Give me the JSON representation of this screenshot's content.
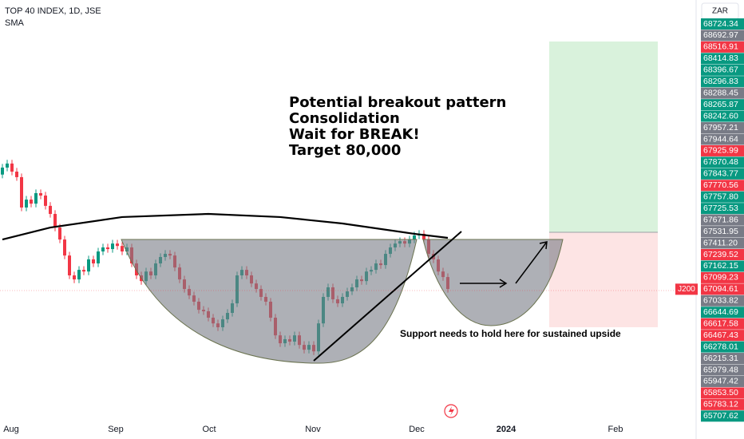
{
  "chart_data": {
    "type": "candlestick",
    "title": "TOP 40 INDEX, 1D, JSE",
    "indicator": "SMA",
    "currency": "ZAR",
    "symbol_label": "J200",
    "annotation_lines": [
      "Potential breakout pattern",
      "Consolidation",
      "Wait for BREAK!",
      "Target 80,000"
    ],
    "support_note": "Support needs to hold here for sustained upside",
    "x_labels": [
      "Aug",
      "Sep",
      "Oct",
      "Nov",
      "Dec",
      "2024",
      "Feb"
    ],
    "ylim": [
      59980,
      82890
    ],
    "up_color": "#089981",
    "down_color": "#f23645",
    "last_price": 67094.61,
    "open": [
      73400,
      73780,
      74000,
      73560,
      73260,
      71610,
      72040,
      71820,
      72390,
      72260,
      71700,
      71260,
      70520,
      69870,
      69000,
      67920,
      67700,
      68220,
      68130,
      68790,
      68570,
      69220,
      69440,
      69350,
      69650,
      69520,
      69220,
      69440,
      68570,
      67920,
      67610,
      68130,
      67920,
      68570,
      68920,
      69090,
      69000,
      68350,
      67700,
      67180,
      66830,
      66490,
      66050,
      65970,
      65620,
      65310,
      65100,
      65530,
      65880,
      66400,
      67920,
      68220,
      67920,
      67480,
      67180,
      66750,
      66490,
      65620,
      64660,
      64230,
      64450,
      64320,
      64660,
      64140,
      63880,
      64140,
      63790,
      65310,
      66750,
      67270,
      66620,
      66400,
      66750,
      67050,
      67270,
      67700,
      67610,
      68130,
      68220,
      68570,
      68480,
      69090,
      69440,
      69650,
      69780,
      69650,
      69870,
      70090,
      70180,
      69870,
      69090,
      68790,
      68130,
      67830
    ],
    "high": [
      73980,
      74200,
      74200,
      73760,
      73460,
      72240,
      72240,
      72590,
      72590,
      72460,
      71900,
      71460,
      70720,
      70070,
      69200,
      68120,
      68420,
      68420,
      68990,
      68990,
      69420,
      69640,
      69640,
      69850,
      69850,
      69720,
      69640,
      69640,
      68770,
      68120,
      68330,
      68330,
      68770,
      69120,
      69290,
      69290,
      69200,
      68550,
      67900,
      67380,
      67030,
      66690,
      66250,
      66170,
      65820,
      65510,
      65730,
      66080,
      66600,
      68120,
      68420,
      68420,
      68120,
      67680,
      67380,
      66950,
      66690,
      65820,
      64860,
      64650,
      64650,
      64860,
      64860,
      64340,
      64340,
      64340,
      65510,
      66950,
      67470,
      67470,
      66820,
      66950,
      67250,
      67470,
      67900,
      67900,
      68330,
      68420,
      68770,
      68770,
      69290,
      69640,
      69850,
      69980,
      69980,
      70070,
      70290,
      70380,
      70380,
      70070,
      69290,
      68990,
      68330,
      68030
    ],
    "low": [
      73200,
      73580,
      73360,
      73060,
      71410,
      71410,
      71620,
      71620,
      72060,
      71500,
      71060,
      70320,
      69670,
      68800,
      67720,
      67500,
      67500,
      67930,
      67930,
      68370,
      68370,
      69020,
      69150,
      69150,
      69320,
      69020,
      69020,
      68370,
      67720,
      67410,
      67410,
      67720,
      67720,
      68370,
      68720,
      68800,
      68150,
      67500,
      66980,
      66630,
      66290,
      65850,
      65770,
      65420,
      65110,
      64900,
      64900,
      65330,
      65680,
      66200,
      67720,
      67720,
      67280,
      66980,
      66550,
      66290,
      65420,
      64460,
      64030,
      64030,
      64120,
      64120,
      63940,
      63680,
      63680,
      63590,
      63590,
      65110,
      66550,
      66420,
      66200,
      66200,
      66550,
      66850,
      67070,
      67410,
      67410,
      67930,
      68020,
      68280,
      68280,
      68890,
      69240,
      69450,
      69450,
      69450,
      69670,
      69890,
      69670,
      68890,
      68590,
      67930,
      67630,
      66980
    ],
    "close": [
      73780,
      74000,
      73560,
      73260,
      71610,
      72040,
      71820,
      72390,
      72260,
      71700,
      71260,
      70520,
      69870,
      69000,
      67920,
      67700,
      68220,
      68130,
      68790,
      68570,
      69220,
      69440,
      69350,
      69650,
      69520,
      69220,
      69440,
      68570,
      67920,
      67610,
      68130,
      67920,
      68570,
      68920,
      69090,
      69000,
      68350,
      67700,
      67180,
      66830,
      66490,
      66050,
      65970,
      65620,
      65310,
      65100,
      65530,
      65880,
      66400,
      67920,
      68220,
      67920,
      67480,
      67180,
      66750,
      66490,
      65620,
      64660,
      64230,
      64450,
      64320,
      64660,
      64140,
      63880,
      64140,
      63790,
      65310,
      66750,
      67270,
      66620,
      66400,
      66750,
      67050,
      67270,
      67700,
      67610,
      68130,
      68220,
      68570,
      68480,
      69090,
      69440,
      69650,
      69780,
      69650,
      69870,
      70090,
      70180,
      69870,
      69090,
      68790,
      68130,
      67830,
      67180
    ],
    "sma": {
      "color": "#000000",
      "index": [
        0,
        10,
        25,
        43,
        58,
        71,
        86,
        93
      ],
      "values": [
        69870,
        70520,
        71090,
        71260,
        71090,
        70740,
        70180,
        69960
      ]
    },
    "price_labels": [
      {
        "value": 68724.34,
        "color": "#089981"
      },
      {
        "value": 68692.97,
        "color": "#787b86"
      },
      {
        "value": 68516.91,
        "color": "#f23645"
      },
      {
        "value": 68414.83,
        "color": "#089981"
      },
      {
        "value": 68396.67,
        "color": "#089981"
      },
      {
        "value": 68296.83,
        "color": "#089981"
      },
      {
        "value": 68288.45,
        "color": "#787b86"
      },
      {
        "value": 68265.87,
        "color": "#089981"
      },
      {
        "value": 68242.6,
        "label": "68242.60",
        "color": "#089981"
      },
      {
        "value": 67957.21,
        "color": "#787b86"
      },
      {
        "value": 67944.64,
        "color": "#787b86"
      },
      {
        "value": 67925.99,
        "color": "#f23645"
      },
      {
        "value": 67870.48,
        "color": "#089981"
      },
      {
        "value": 67843.77,
        "color": "#089981"
      },
      {
        "value": 67770.56,
        "color": "#f23645"
      },
      {
        "value": 67757.8,
        "label": "67757.80",
        "color": "#089981"
      },
      {
        "value": 67725.53,
        "color": "#089981"
      },
      {
        "value": 67671.86,
        "color": "#787b86"
      },
      {
        "value": 67531.95,
        "color": "#787b86"
      },
      {
        "value": 67411.2,
        "label": "67411.20",
        "color": "#787b86"
      },
      {
        "value": 67239.52,
        "color": "#f23645"
      },
      {
        "value": 67162.15,
        "color": "#089981"
      },
      {
        "value": 67099.23,
        "color": "#f23645"
      },
      {
        "value": 67094.61,
        "color": "#f23645"
      },
      {
        "value": 67033.82,
        "color": "#787b86"
      },
      {
        "value": 66644.69,
        "color": "#089981"
      },
      {
        "value": 66617.58,
        "color": "#f23645"
      },
      {
        "value": 66467.43,
        "color": "#f23645"
      },
      {
        "value": 66278.01,
        "color": "#089981"
      },
      {
        "value": 66215.31,
        "color": "#787b86"
      },
      {
        "value": 65979.48,
        "color": "#787b86"
      },
      {
        "value": 65947.42,
        "color": "#787b86"
      },
      {
        "value": 65853.5,
        "label": "65853.50",
        "color": "#f23645"
      },
      {
        "value": 65783.12,
        "color": "#f23645"
      },
      {
        "value": 65707.62,
        "color": "#089981"
      }
    ]
  }
}
